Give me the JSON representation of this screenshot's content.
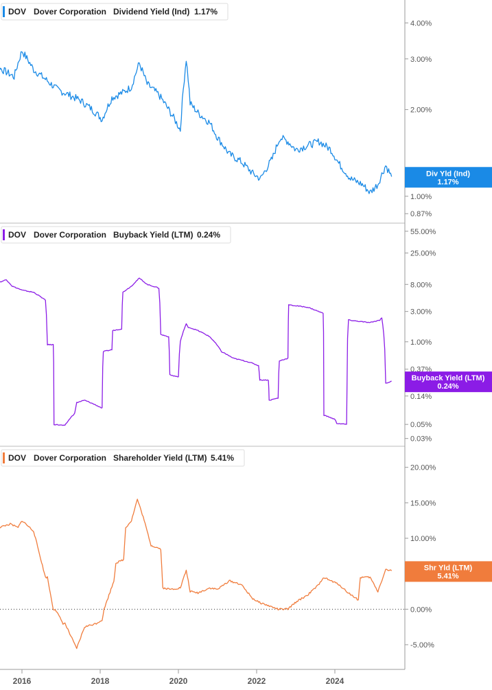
{
  "x_axis": {
    "labels": [
      "2016",
      "2018",
      "2020",
      "2022",
      "2024"
    ]
  },
  "chart_data": [
    {
      "type": "line",
      "ticker": "DOV",
      "company": "Dover Corporation",
      "title": "Dividend Yield (Ind)",
      "last_value": "1.17%",
      "badge_label": "Div Yld (Ind)",
      "badge_value": "1.17%",
      "color": "#1a8ae6",
      "scale": "log",
      "ylim": [
        0.82,
        4.7
      ],
      "yticks": [
        {
          "v": 4.0,
          "label": "4.00%"
        },
        {
          "v": 3.0,
          "label": "3.00%"
        },
        {
          "v": 2.0,
          "label": "2.00%"
        },
        {
          "v": 1.0,
          "label": "1.00%"
        },
        {
          "v": 0.87,
          "label": "0.87%"
        }
      ],
      "x": [
        2015.0,
        2015.4,
        2015.8,
        2016.0,
        2016.3,
        2016.6,
        2016.9,
        2017.2,
        2017.5,
        2017.8,
        2018.05,
        2018.3,
        2018.6,
        2018.8,
        2019.0,
        2019.2,
        2019.5,
        2019.8,
        2020.05,
        2020.2,
        2020.3,
        2020.5,
        2020.8,
        2021.0,
        2021.3,
        2021.6,
        2021.9,
        2022.1,
        2022.4,
        2022.6,
        2022.8,
        2023.0,
        2023.3,
        2023.6,
        2023.9,
        2024.1,
        2024.4,
        2024.7,
        2024.9,
        2025.1,
        2025.3,
        2025.45
      ],
      "values": [
        2.3,
        2.8,
        2.6,
        3.2,
        2.75,
        2.55,
        2.35,
        2.25,
        2.15,
        2.0,
        1.85,
        2.2,
        2.3,
        2.4,
        2.9,
        2.45,
        2.25,
        1.95,
        1.7,
        3.0,
        2.1,
        1.95,
        1.8,
        1.6,
        1.4,
        1.32,
        1.2,
        1.15,
        1.35,
        1.6,
        1.55,
        1.45,
        1.5,
        1.55,
        1.45,
        1.3,
        1.15,
        1.1,
        1.03,
        1.1,
        1.28,
        1.17
      ]
    },
    {
      "type": "line",
      "ticker": "DOV",
      "company": "Dover Corporation",
      "title": "Buyback Yield (LTM)",
      "last_value": "0.24%",
      "badge_label": "Buyback Yield (LTM)",
      "badge_value": "0.24%",
      "color": "#8b1ce6",
      "scale": "log",
      "ylim": [
        0.025,
        62
      ],
      "yticks": [
        {
          "v": 55,
          "label": "55.00%"
        },
        {
          "v": 25,
          "label": "25.00%"
        },
        {
          "v": 8,
          "label": "8.00%"
        },
        {
          "v": 3,
          "label": "3.00%"
        },
        {
          "v": 1,
          "label": "1.00%"
        },
        {
          "v": 0.37,
          "label": "0.37%"
        },
        {
          "v": 0.14,
          "label": "0.14%"
        },
        {
          "v": 0.05,
          "label": "0.05%"
        },
        {
          "v": 0.03,
          "label": "0.03%"
        }
      ],
      "x": [
        2015.0,
        2015.3,
        2015.6,
        2015.75,
        2016.0,
        2016.3,
        2016.6,
        2016.65,
        2016.8,
        2016.82,
        2017.1,
        2017.35,
        2017.4,
        2017.6,
        2017.9,
        2018.05,
        2018.08,
        2018.3,
        2018.32,
        2018.55,
        2018.58,
        2018.8,
        2019.0,
        2019.2,
        2019.5,
        2019.55,
        2019.75,
        2019.78,
        2020.0,
        2020.05,
        2020.2,
        2020.25,
        2020.5,
        2020.8,
        2021.1,
        2021.4,
        2021.8,
        2022.05,
        2022.08,
        2022.3,
        2022.32,
        2022.55,
        2022.58,
        2022.8,
        2022.82,
        2023.3,
        2023.7,
        2023.72,
        2024.0,
        2024.05,
        2024.3,
        2024.35,
        2024.6,
        2024.9,
        2025.15,
        2025.2,
        2025.3,
        2025.45
      ],
      "values": [
        5.5,
        8.0,
        9.5,
        7.5,
        6.5,
        6.0,
        4.5,
        0.9,
        0.9,
        0.05,
        0.048,
        0.075,
        0.11,
        0.12,
        0.1,
        0.09,
        0.7,
        0.75,
        1.5,
        1.6,
        6.0,
        7.5,
        10.0,
        8.0,
        7.0,
        1.3,
        1.2,
        0.3,
        0.28,
        1.0,
        1.9,
        1.7,
        1.5,
        1.2,
        0.7,
        0.55,
        0.48,
        0.42,
        0.25,
        0.25,
        0.12,
        0.13,
        0.5,
        0.55,
        3.8,
        3.5,
        2.8,
        0.07,
        0.06,
        0.052,
        0.05,
        2.2,
        2.1,
        2.0,
        2.2,
        2.4,
        0.22,
        0.24
      ]
    },
    {
      "type": "line",
      "ticker": "DOV",
      "company": "Dover Corporation",
      "title": "Shareholder Yield (LTM)",
      "last_value": "5.41%",
      "badge_label": "Shr Yld (LTM)",
      "badge_value": "5.41%",
      "color": "#f07c3c",
      "scale": "linear",
      "ylim": [
        -8,
        22
      ],
      "zero_line": true,
      "yticks": [
        {
          "v": 20,
          "label": "20.00%"
        },
        {
          "v": 15,
          "label": "15.00%"
        },
        {
          "v": 10,
          "label": "10.00%"
        },
        {
          "v": 5,
          "label": "5.00%"
        },
        {
          "v": 0,
          "label": "0.00%"
        },
        {
          "v": -5,
          "label": "-5.00%"
        }
      ],
      "x": [
        2015.0,
        2015.15,
        2015.4,
        2015.7,
        2015.9,
        2016.0,
        2016.3,
        2016.6,
        2016.65,
        2016.8,
        2016.85,
        2017.05,
        2017.1,
        2017.35,
        2017.4,
        2017.6,
        2017.9,
        2018.05,
        2018.1,
        2018.35,
        2018.4,
        2018.6,
        2018.65,
        2018.8,
        2018.95,
        2019.1,
        2019.3,
        2019.55,
        2019.6,
        2019.8,
        2020.05,
        2020.2,
        2020.3,
        2020.5,
        2020.8,
        2021.0,
        2021.3,
        2021.6,
        2021.9,
        2022.05,
        2022.3,
        2022.55,
        2022.8,
        2023.0,
        2023.3,
        2023.6,
        2023.7,
        2023.9,
        2024.1,
        2024.3,
        2024.6,
        2024.65,
        2024.9,
        2025.1,
        2025.3,
        2025.45
      ],
      "values": [
        4.5,
        10.5,
        11.5,
        12.0,
        11.5,
        12.5,
        11.0,
        4.5,
        4.5,
        0.0,
        0.0,
        -2.0,
        -2.0,
        -5.0,
        -5.5,
        -2.5,
        -2.0,
        -1.5,
        0.0,
        4.0,
        6.5,
        7.0,
        11.5,
        12.5,
        15.5,
        13.0,
        9.0,
        8.5,
        3.0,
        2.8,
        3.0,
        5.5,
        2.5,
        2.3,
        3.0,
        2.8,
        4.0,
        3.5,
        1.5,
        1.0,
        0.5,
        0.0,
        0.0,
        1.0,
        2.0,
        3.5,
        4.5,
        4.0,
        3.5,
        2.5,
        1.3,
        4.5,
        4.5,
        2.5,
        5.6,
        5.41
      ]
    }
  ]
}
